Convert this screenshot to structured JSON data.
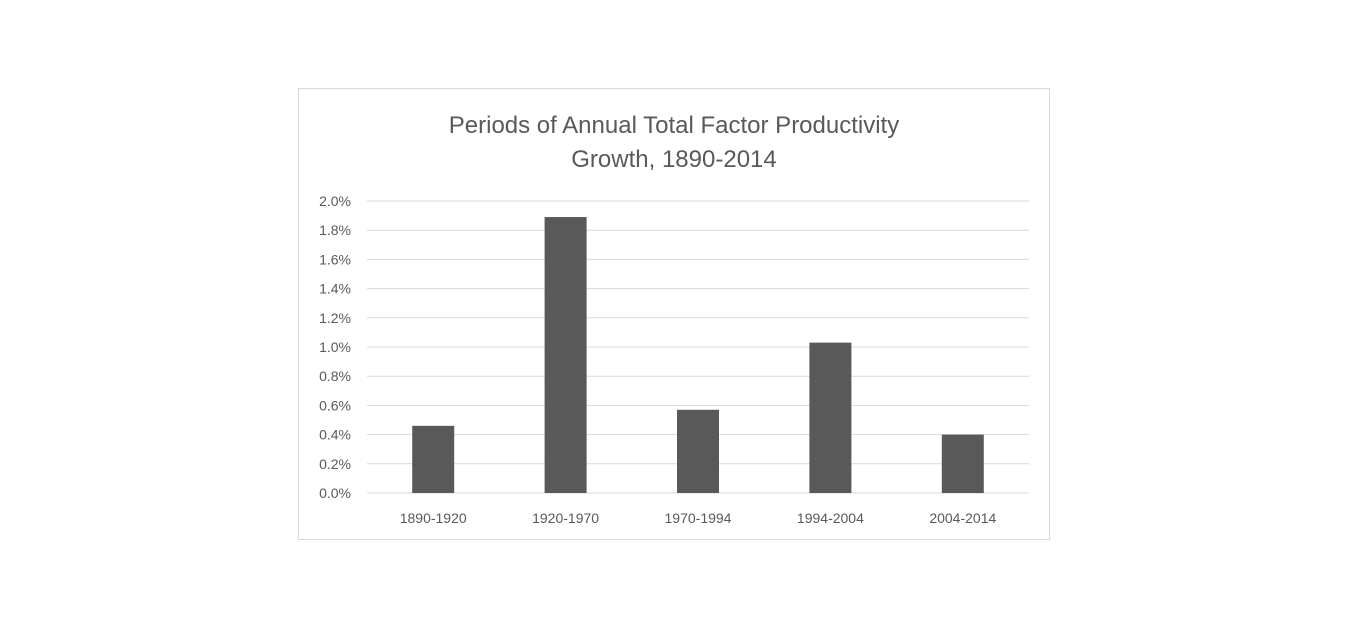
{
  "chart_data": {
    "type": "bar",
    "title_lines": [
      "Periods of Annual Total Factor Productivity",
      "Growth, 1890-2014"
    ],
    "categories": [
      "1890-1920",
      "1920-1970",
      "1970-1994",
      "1994-2004",
      "2004-2014"
    ],
    "values": [
      0.46,
      1.89,
      0.57,
      1.03,
      0.4
    ],
    "value_unit": "%",
    "ylim": [
      0,
      2.0
    ],
    "yticks": [
      "0.0%",
      "0.2%",
      "0.4%",
      "0.6%",
      "0.8%",
      "1.0%",
      "1.2%",
      "1.4%",
      "1.6%",
      "1.8%",
      "2.0%"
    ],
    "xlabel": "",
    "ylabel": "",
    "grid": true,
    "legend": "none",
    "colors": {
      "bar": "#595959",
      "grid": "#d9d9d9",
      "text": "#595959",
      "border": "#d9d9d9"
    }
  }
}
